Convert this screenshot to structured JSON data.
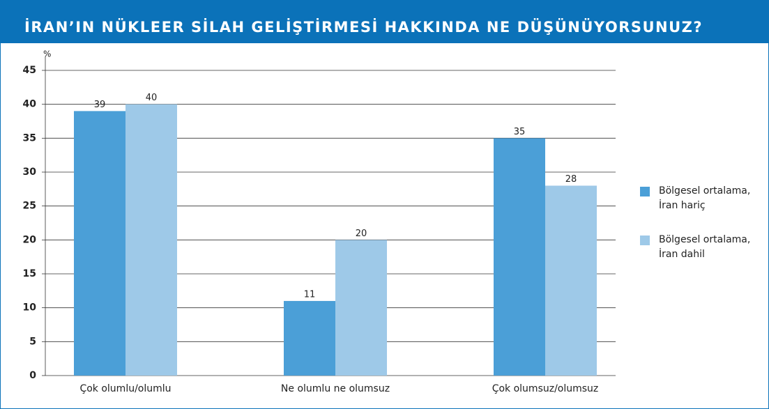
{
  "chart_data": {
    "type": "bar",
    "title": "İRAN’IN NÜKLEER SİLAH GELİŞTİRMESİ HAKKINDA NE DÜŞÜNÜYORSUNUZ?",
    "y_label": "%",
    "categories": [
      "Çok olumlu/olumlu",
      "Ne olumlu ne olumsuz",
      "Çok olumsuz/olumsuz"
    ],
    "series": [
      {
        "name": "Bölgesel ortalama, İran hariç",
        "color": "#4b9fd7",
        "values": [
          39,
          11,
          35
        ]
      },
      {
        "name": "Bölgesel ortalama, İran dahil",
        "color": "#9ec9e8",
        "values": [
          40,
          20,
          28
        ]
      }
    ],
    "ylim": [
      0,
      45
    ],
    "yticks": [
      0,
      5,
      10,
      15,
      20,
      25,
      30,
      35,
      40,
      45
    ],
    "grid": true,
    "legend": "right"
  }
}
